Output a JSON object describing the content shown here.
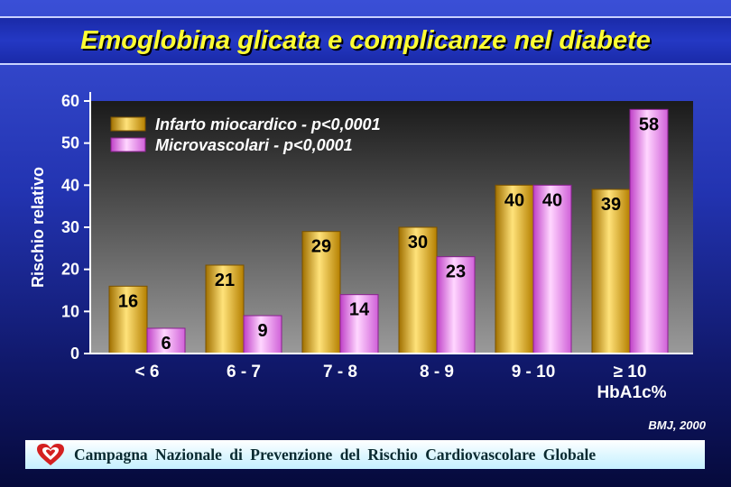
{
  "title": "Emoglobina glicata e complicanze nel diabete",
  "source": "BMJ, 2000",
  "footer": {
    "text": "Campagna Nazionale di Prevenzione del Rischio Cardiovascolare Globale",
    "logo_icon": "heart-logo-icon"
  },
  "colors": {
    "series_infarto": "#f0c020",
    "series_micro": "#ff99ff",
    "title": "#ffff33",
    "plot_top": "#1a1a1a",
    "plot_bottom": "#9a9a9a"
  },
  "chart_data": {
    "type": "bar",
    "title": "",
    "ylabel": "Rischio relativo",
    "xlabel": "HbA1c%",
    "ylim": [
      0,
      60
    ],
    "yticks": [
      0,
      10,
      20,
      30,
      40,
      50,
      60
    ],
    "categories": [
      "< 6",
      "6 - 7",
      "7 - 8",
      "8 - 9",
      "9 - 10",
      "≥ 10"
    ],
    "legend_position": "top-left",
    "grid": false,
    "series": [
      {
        "name": "Infarto miocardico - p<0,0001",
        "values": [
          16,
          21,
          29,
          30,
          40,
          39
        ],
        "labels": [
          "16",
          "21",
          "29",
          "30",
          "40",
          "39"
        ]
      },
      {
        "name": "Microvascolari - p<0,0001",
        "values": [
          6,
          9,
          14,
          23,
          40,
          58
        ],
        "labels": [
          "6",
          "9",
          "14",
          "23",
          "40",
          "58"
        ]
      }
    ]
  }
}
